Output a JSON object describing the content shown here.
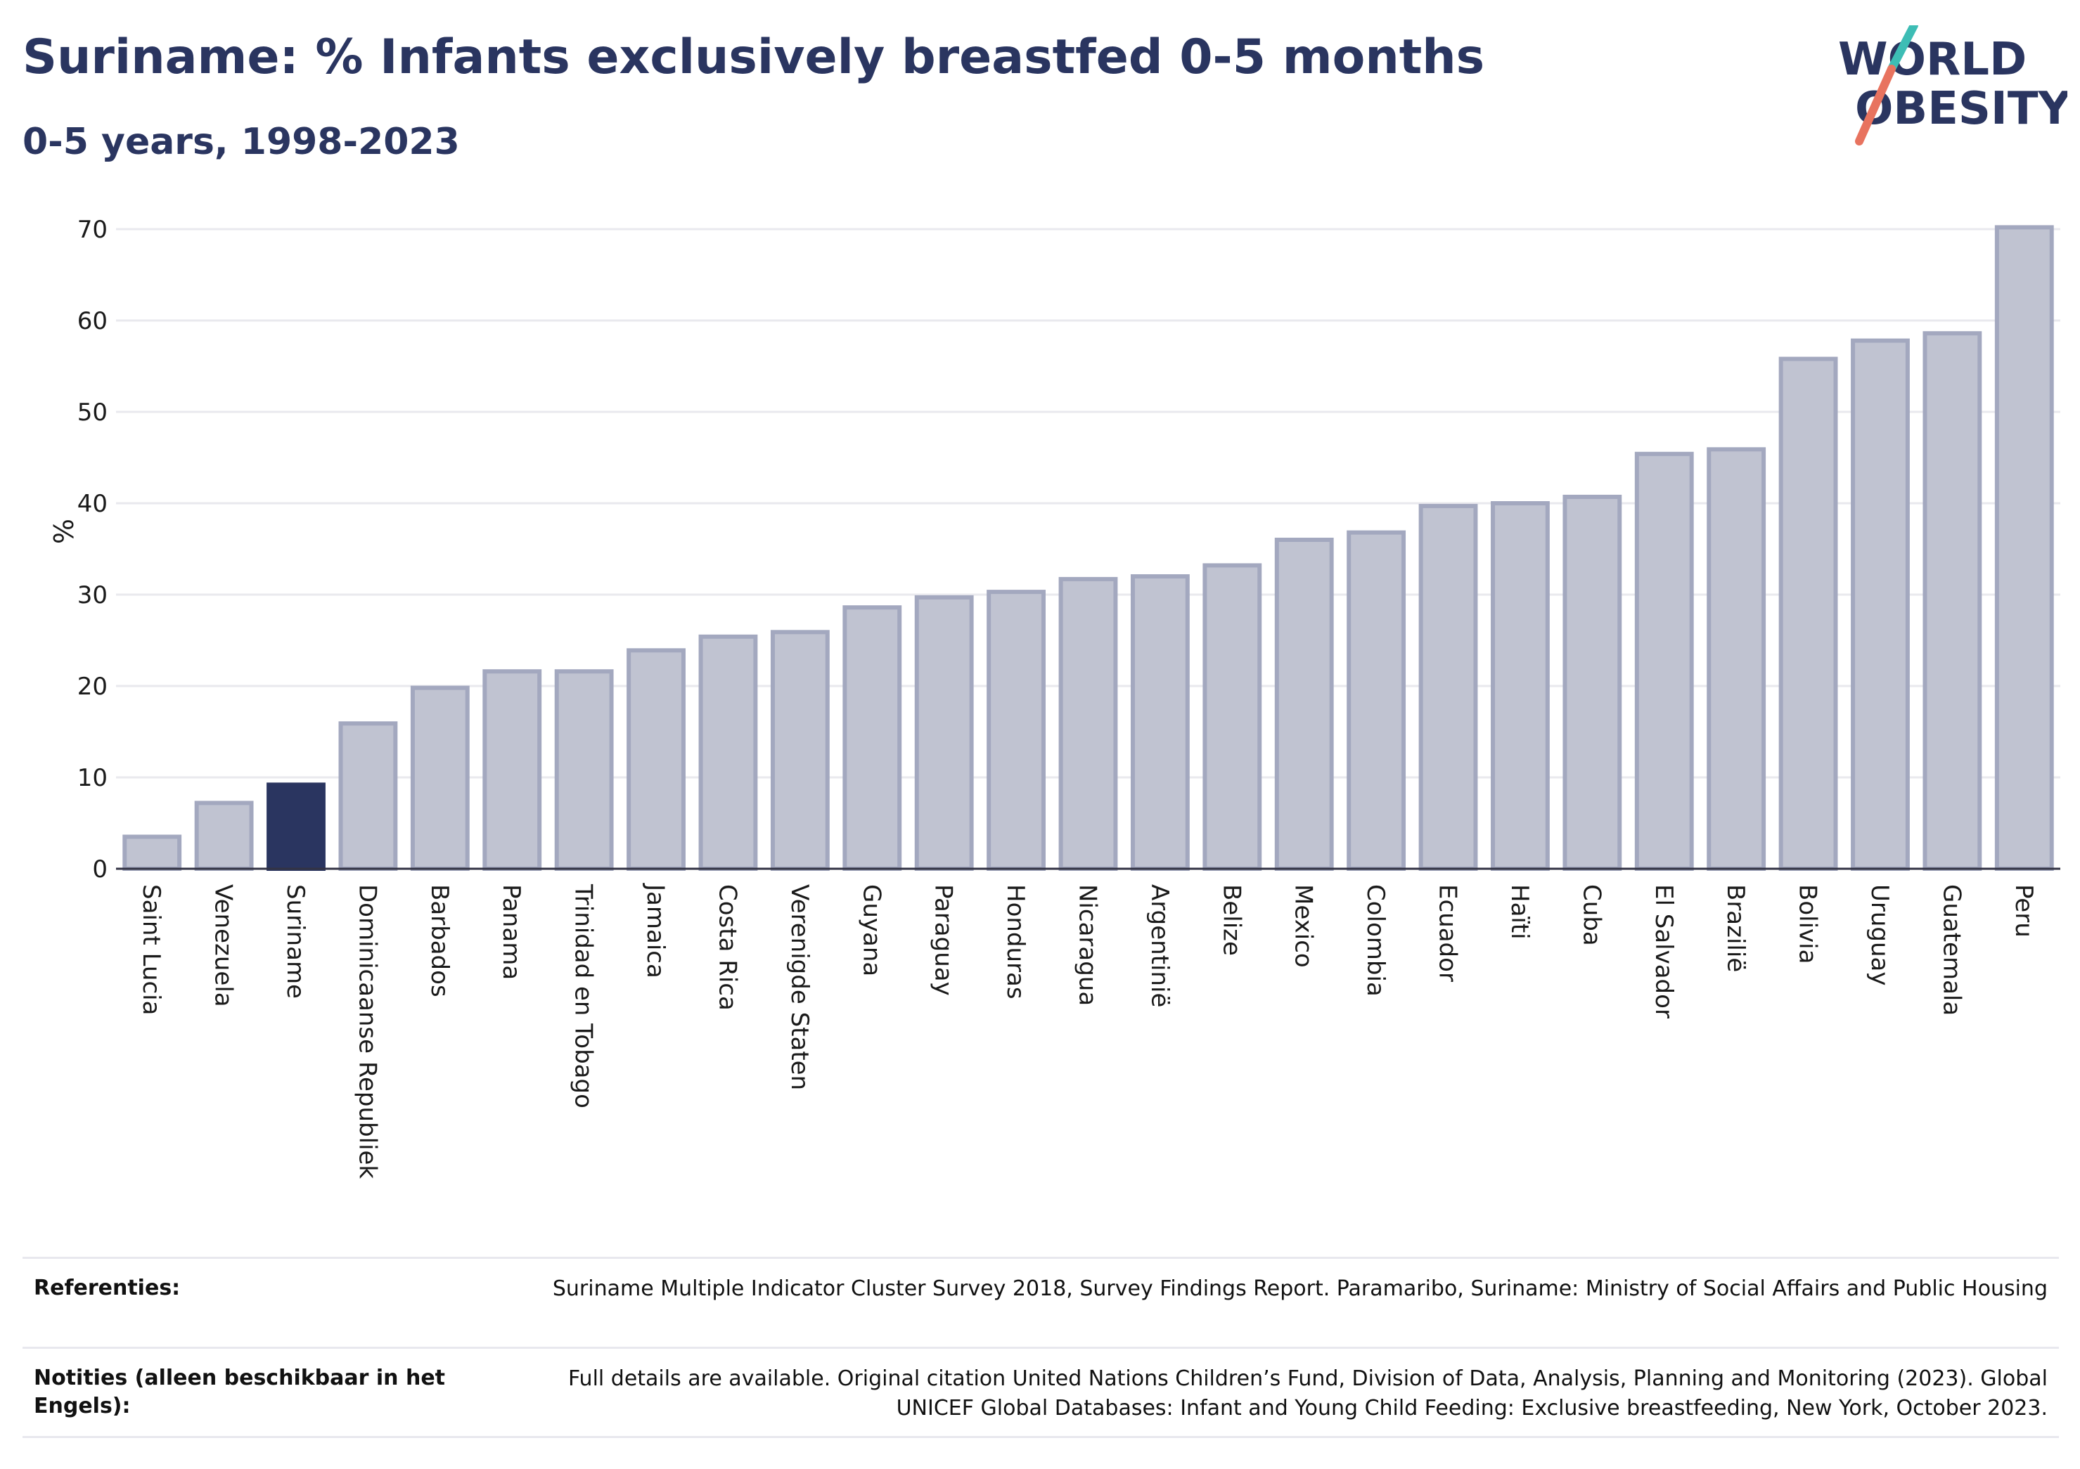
{
  "header": {
    "title": "Suriname: % Infants exclusively breastfed 0-5 months",
    "subtitle": "0-5 years, 1998-2023"
  },
  "logo": {
    "line1": "WORLD",
    "line2": "OBESITY",
    "icon": "world-obesity-slash-logo",
    "colors": {
      "text": "#2a3560",
      "slash_top": "#3dbdb5",
      "slash_bottom": "#e8735f"
    }
  },
  "colors": {
    "highlight": "#2a3560",
    "bar": "#c0c3d1",
    "bar_border": "#a3a8bf",
    "grid": "#e9e9ee",
    "axis": "#333344"
  },
  "chart_data": {
    "type": "bar",
    "title": "Suriname: % Infants exclusively breastfed 0-5 months",
    "subtitle": "0-5 years, 1998-2023",
    "xlabel": "",
    "ylabel": "%",
    "ylim": [
      0,
      72
    ],
    "yticks": [
      0,
      10,
      20,
      30,
      40,
      50,
      60,
      70
    ],
    "grid": true,
    "highlight": "Suriname",
    "categories": [
      "Saint Lucia",
      "Venezuela",
      "Suriname",
      "Dominicaanse Republiek",
      "Barbados",
      "Panama",
      "Trinidad en Tobago",
      "Jamaica",
      "Costa Rica",
      "Verenigde Staten",
      "Guyana",
      "Paraguay",
      "Honduras",
      "Nicaragua",
      "Argentinië",
      "Belize",
      "Mexico",
      "Colombia",
      "Ecuador",
      "Haïti",
      "Cuba",
      "El Salvador",
      "Brazilië",
      "Bolivia",
      "Uruguay",
      "Guatemala",
      "Peru"
    ],
    "values": [
      3.5,
      7.2,
      9.2,
      15.9,
      19.8,
      21.6,
      21.6,
      23.9,
      25.4,
      25.9,
      28.6,
      29.7,
      30.3,
      31.7,
      32.0,
      33.2,
      36.0,
      36.8,
      39.7,
      40.0,
      40.7,
      45.4,
      45.9,
      55.8,
      57.8,
      58.6,
      70.2
    ]
  },
  "footer": {
    "references_label": "Referenties:",
    "references_text": "Suriname Multiple Indicator Cluster Survey 2018, Survey Findings Report. Paramaribo, Suriname: Ministry of Social Affairs and Public Housing",
    "notes_label": "Notities (alleen beschikbaar in het Engels):",
    "notes_text": "Full details are available. Original citation United Nations Children’s Fund, Division of Data, Analysis, Planning and Monitoring (2023). Global UNICEF Global Databases: Infant and Young Child Feeding: Exclusive breastfeeding, New York, October 2023."
  }
}
